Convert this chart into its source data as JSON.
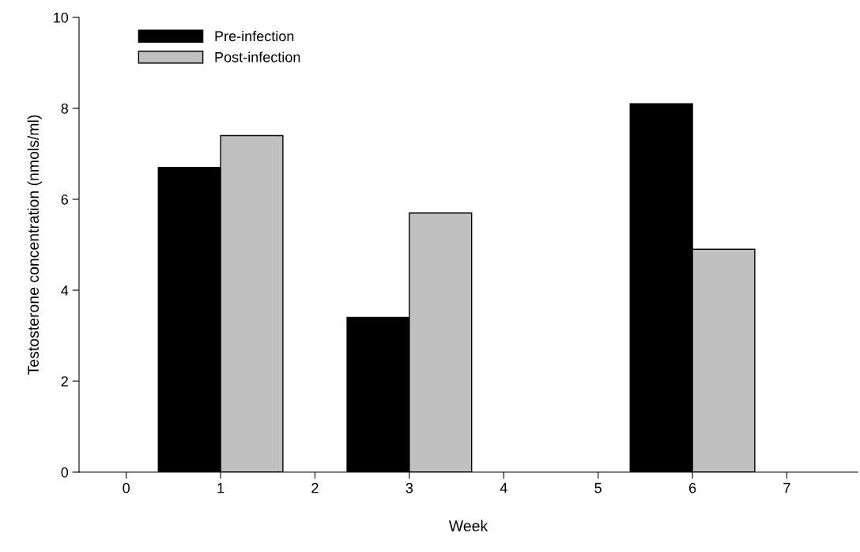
{
  "chart_data": {
    "type": "bar",
    "xlabel": "Week",
    "ylabel": "Testosterone concentration (nmols/ml)",
    "x": [
      1,
      3,
      6
    ],
    "series": [
      {
        "name": "Pre-infection",
        "color": "#000000",
        "values": [
          6.7,
          3.4,
          8.1
        ]
      },
      {
        "name": "Post-infection",
        "color": "#c0c0c0",
        "values": [
          7.4,
          5.7,
          4.9
        ]
      }
    ],
    "xlim": [
      -0.5,
      7.75
    ],
    "xticks": [
      0,
      1,
      2,
      3,
      4,
      5,
      6,
      7
    ],
    "ylim": [
      0,
      10
    ],
    "yticks": [
      0,
      2,
      4,
      6,
      8,
      10
    ],
    "legend": "top left"
  }
}
